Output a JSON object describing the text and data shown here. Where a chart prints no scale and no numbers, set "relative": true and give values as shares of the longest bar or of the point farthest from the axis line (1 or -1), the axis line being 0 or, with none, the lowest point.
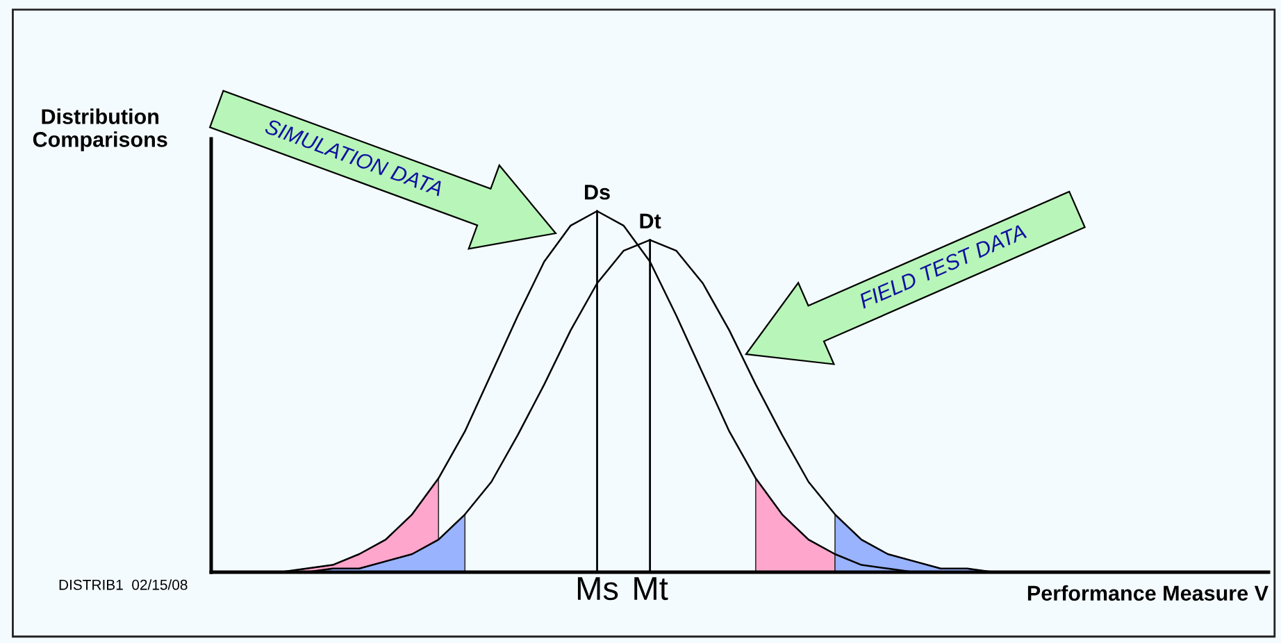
{
  "chart_data": {
    "type": "line",
    "relative": true,
    "ylabel": "Distribution\nComparisons",
    "xlabel": "Performance Measure V",
    "categories": [
      null,
      null,
      null,
      null,
      null,
      null,
      null,
      null,
      null,
      null,
      null,
      null,
      null,
      null,
      "Ms",
      null,
      "Mt",
      null,
      null,
      null,
      null,
      null,
      null,
      null,
      null,
      null,
      null,
      null,
      null,
      null,
      null,
      null,
      null,
      null,
      null,
      null,
      null,
      null,
      null,
      null
    ],
    "series": [
      {
        "type": "area",
        "color": "#ffa6cc",
        "values": [
          0,
          0,
          0,
          0.01,
          0.02,
          0.05,
          0.09,
          0.16,
          0.26,
          null,
          null,
          null,
          null,
          null,
          null,
          null,
          null,
          null,
          null,
          null,
          null,
          null,
          null,
          null,
          null,
          null,
          null,
          null,
          null,
          null,
          null,
          null,
          null,
          null,
          null,
          null,
          null,
          null,
          null,
          null
        ]
      },
      {
        "type": "area",
        "color": "#99b3ff",
        "values": [
          0,
          0,
          0,
          0,
          0.01,
          0.01,
          0.03,
          0.05,
          0.09,
          0.16,
          null,
          null,
          null,
          null,
          null,
          null,
          null,
          null,
          null,
          null,
          null,
          null,
          null,
          null,
          null,
          null,
          null,
          null,
          null,
          null,
          null,
          null,
          null,
          null,
          null,
          null,
          null,
          null,
          null,
          null
        ]
      },
      {
        "type": "area",
        "color": "#ffa6cc",
        "values": [
          null,
          null,
          null,
          null,
          null,
          null,
          null,
          null,
          null,
          null,
          null,
          null,
          null,
          null,
          null,
          null,
          null,
          null,
          null,
          null,
          0.26,
          0.16,
          0.09,
          0.05,
          null,
          null,
          null,
          null,
          null,
          null,
          null,
          null,
          null,
          null,
          null,
          null,
          null,
          null,
          null,
          null
        ]
      },
      {
        "type": "area",
        "color": "#99b3ff",
        "values": [
          null,
          null,
          null,
          null,
          null,
          null,
          null,
          null,
          null,
          null,
          null,
          null,
          null,
          null,
          null,
          null,
          null,
          null,
          null,
          null,
          null,
          null,
          null,
          0.16,
          0.09,
          0.05,
          0.03,
          0.01,
          0.01,
          0,
          0,
          null,
          null,
          null,
          null,
          null,
          null,
          null,
          null,
          null
        ]
      },
      {
        "color": "#000000",
        "values": [
          0,
          0,
          0,
          0.01,
          0.02,
          0.05,
          0.09,
          0.16,
          0.26,
          0.39,
          0.55,
          0.71,
          0.86,
          0.96,
          1,
          0.96,
          0.86,
          0.71,
          0.55,
          0.39,
          0.26,
          0.16,
          0.09,
          0.05,
          0.02,
          0.01,
          0,
          null,
          null,
          null,
          null,
          null,
          null,
          null,
          null,
          null,
          null,
          null,
          null,
          null
        ]
      },
      {
        "color": "#000000",
        "values": [
          null,
          0,
          0,
          0,
          0.01,
          0.01,
          0.03,
          0.05,
          0.09,
          0.16,
          0.25,
          0.38,
          0.52,
          0.67,
          0.8,
          0.89,
          0.92,
          0.89,
          0.8,
          0.67,
          0.52,
          0.38,
          0.25,
          0.16,
          0.09,
          0.05,
          0.03,
          0.01,
          0.01,
          0,
          0,
          0,
          null,
          null,
          null,
          null,
          null,
          null,
          null,
          null
        ]
      }
    ],
    "ref_lines": [
      {
        "axis": "x",
        "value": "Ms",
        "color": "#000000"
      },
      {
        "axis": "x",
        "value": "Mt",
        "color": "#000000"
      }
    ],
    "annotations": [
      {
        "text": "Ds",
        "x": "Ms",
        "y": 1
      },
      {
        "text": "Dt",
        "x": "Mt",
        "y": 0.92
      },
      "SIMULATION DATA",
      "FIELD TEST DATA",
      "DISTRIB1  02/15/08"
    ],
    "grid": false,
    "legend": false
  }
}
